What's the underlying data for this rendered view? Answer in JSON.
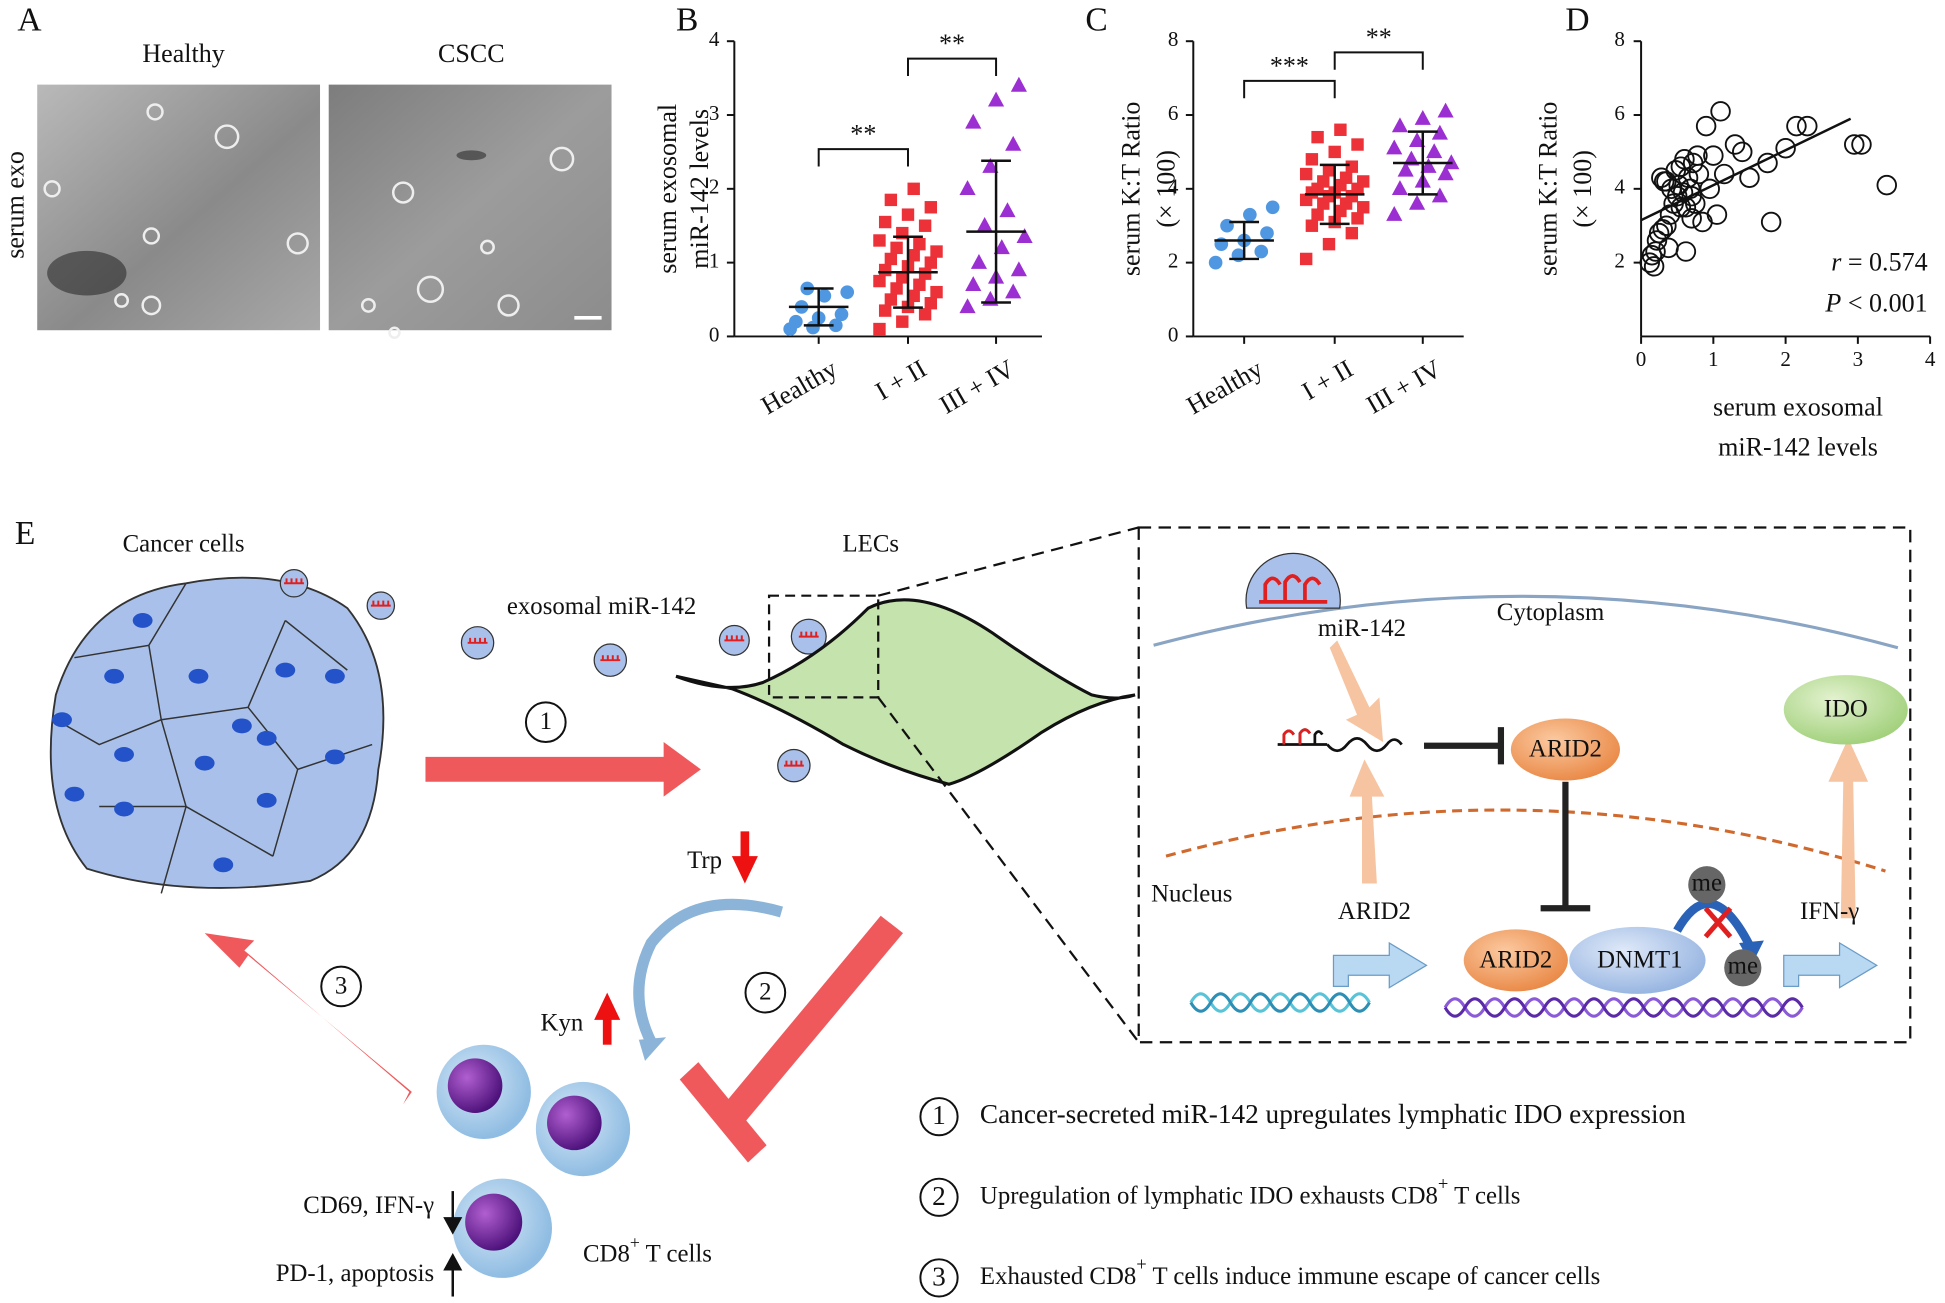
{
  "panel_a": {
    "label": "A",
    "columns": [
      "Healthy",
      "CSCC"
    ],
    "row_label": "serum exo"
  },
  "chart_data": [
    {
      "label": "B",
      "type": "dot",
      "ylabel": [
        "serum exosomal",
        "miR-142 levels"
      ],
      "categories": [
        "Healthy",
        "I + II",
        "III + IV"
      ],
      "values": [
        [
          0.1,
          0.12,
          0.15,
          0.2,
          0.25,
          0.3,
          0.4,
          0.55,
          0.6,
          0.65
        ],
        [
          0.1,
          0.2,
          0.3,
          0.35,
          0.4,
          0.45,
          0.5,
          0.55,
          0.6,
          0.65,
          0.7,
          0.75,
          0.8,
          0.85,
          0.9,
          0.95,
          1.0,
          1.05,
          1.1,
          1.15,
          1.2,
          1.25,
          1.3,
          1.4,
          1.5,
          1.55,
          1.65,
          1.75,
          1.85,
          2.0
        ],
        [
          0.4,
          0.5,
          0.6,
          0.7,
          0.8,
          0.9,
          1.0,
          1.2,
          1.35,
          1.5,
          1.7,
          2.0,
          2.3,
          2.6,
          2.9,
          3.2,
          3.4
        ]
      ],
      "means": [
        0.4,
        0.87,
        1.42
      ],
      "sds": [
        0.25,
        0.48,
        0.96
      ],
      "colors": [
        "#4f97e0",
        "#ec3138",
        "#9b2fd2"
      ],
      "markers": [
        "circle",
        "square",
        "triangle"
      ],
      "significance": [
        "**",
        "**"
      ],
      "ylim": [
        0,
        4
      ],
      "yticks": [
        0,
        1,
        2,
        3,
        4
      ]
    },
    {
      "label": "C",
      "type": "dot",
      "ylabel": [
        "serum  K:T  Ratio",
        "(× 100)"
      ],
      "categories": [
        "Healthy",
        "I + II",
        "III + IV"
      ],
      "values": [
        [
          2.0,
          2.2,
          2.3,
          2.5,
          2.6,
          2.8,
          3.0,
          3.3,
          3.5
        ],
        [
          2.1,
          2.5,
          2.8,
          3.0,
          3.1,
          3.2,
          3.3,
          3.4,
          3.5,
          3.6,
          3.6,
          3.7,
          3.8,
          3.8,
          3.9,
          3.9,
          4.0,
          4.0,
          4.1,
          4.2,
          4.2,
          4.3,
          4.4,
          4.5,
          4.6,
          4.8,
          5.0,
          5.2,
          5.4,
          5.6
        ],
        [
          3.3,
          3.6,
          3.8,
          4.0,
          4.2,
          4.4,
          4.5,
          4.6,
          4.7,
          4.8,
          5.0,
          5.1,
          5.3,
          5.5,
          5.7,
          5.9,
          6.1
        ]
      ],
      "means": [
        2.6,
        3.85,
        4.7
      ],
      "sds": [
        0.5,
        0.8,
        0.85
      ],
      "colors": [
        "#4f97e0",
        "#ec3138",
        "#9b2fd2"
      ],
      "markers": [
        "circle",
        "square",
        "triangle"
      ],
      "significance": [
        "***",
        "**"
      ],
      "ylim": [
        0,
        8
      ],
      "yticks": [
        0,
        2,
        4,
        6,
        8
      ]
    },
    {
      "label": "D",
      "type": "scatter",
      "ylabel": [
        "serum  K:T  Ratio",
        "(× 100)"
      ],
      "xlabel": [
        "serum exosomal",
        "miR-142 levels"
      ],
      "x": [
        0.12,
        0.15,
        0.18,
        0.2,
        0.22,
        0.25,
        0.3,
        0.32,
        0.35,
        0.38,
        0.4,
        0.42,
        0.45,
        0.48,
        0.5,
        0.52,
        0.55,
        0.58,
        0.6,
        0.62,
        0.65,
        0.68,
        0.7,
        0.72,
        0.75,
        0.78,
        0.8,
        0.85,
        0.9,
        0.95,
        1.0,
        1.05,
        1.1,
        1.15,
        1.3,
        1.4,
        1.5,
        1.75,
        1.8,
        2.0,
        2.15,
        2.3,
        2.95,
        3.05,
        3.4,
        0.35,
        0.55,
        0.62,
        0.28,
        0.7
      ],
      "y": [
        2.0,
        2.2,
        1.9,
        2.3,
        2.6,
        2.8,
        2.9,
        4.2,
        3.0,
        2.4,
        3.3,
        4.0,
        3.6,
        4.5,
        3.8,
        4.1,
        4.6,
        3.9,
        4.8,
        3.5,
        4.3,
        4.0,
        3.2,
        4.7,
        3.6,
        4.9,
        4.4,
        3.1,
        5.7,
        4.0,
        4.9,
        3.3,
        6.1,
        4.4,
        5.2,
        5.0,
        4.3,
        4.7,
        3.1,
        5.1,
        5.7,
        5.7,
        5.2,
        5.2,
        4.1,
        4.2,
        3.5,
        2.3,
        4.3,
        3.8
      ],
      "color": "#111111",
      "trend": {
        "x": [
          0,
          2.9
        ],
        "y": [
          3.15,
          5.9
        ]
      },
      "annotations": [
        {
          "symbol": "r",
          "text": " = 0.574"
        },
        {
          "symbol": "P",
          "text": " < 0.001"
        }
      ],
      "xlim": [
        0,
        4
      ],
      "xticks": [
        0,
        1,
        2,
        3,
        4
      ],
      "ylim": [
        0,
        8
      ],
      "yticks": [
        2,
        4,
        6,
        8
      ]
    }
  ],
  "panel_e": {
    "label": "E",
    "cancer_cells": "Cancer cells",
    "lecs": "LECs",
    "exosome": "exosomal miR-142",
    "steps": [
      "1",
      "2",
      "3"
    ],
    "trp": "Trp",
    "kyn": "Kyn",
    "down": "CD69, IFN-γ",
    "up": "PD-1, apoptosis",
    "tcells": {
      "text": "CD8",
      "sup": "+",
      "rest": " T cells"
    },
    "inset": {
      "mirna": "miR-142",
      "cytoplasm": "Cytoplasm",
      "arid2_cyto": "ARID2",
      "ido": "IDO",
      "nucleus": "Nucleus",
      "arid2_gene": "ARID2",
      "arid2_complex": "ARID2",
      "dnmt1": "DNMT1",
      "me1": "me",
      "me2": "me",
      "ifn": "IFN-γ"
    },
    "legend": [
      {
        "number": "1",
        "text": "Cancer-secreted miR-142 upregulates lymphatic IDO expression"
      },
      {
        "number": "2",
        "text": "Upregulation of lymphatic IDO exhausts CD8",
        "sup": "+",
        "rest": " T cells"
      },
      {
        "number": "3",
        "text": "Exhausted CD8",
        "sup": "+",
        "rest": " T cells induce immune escape of cancer cells"
      }
    ]
  }
}
